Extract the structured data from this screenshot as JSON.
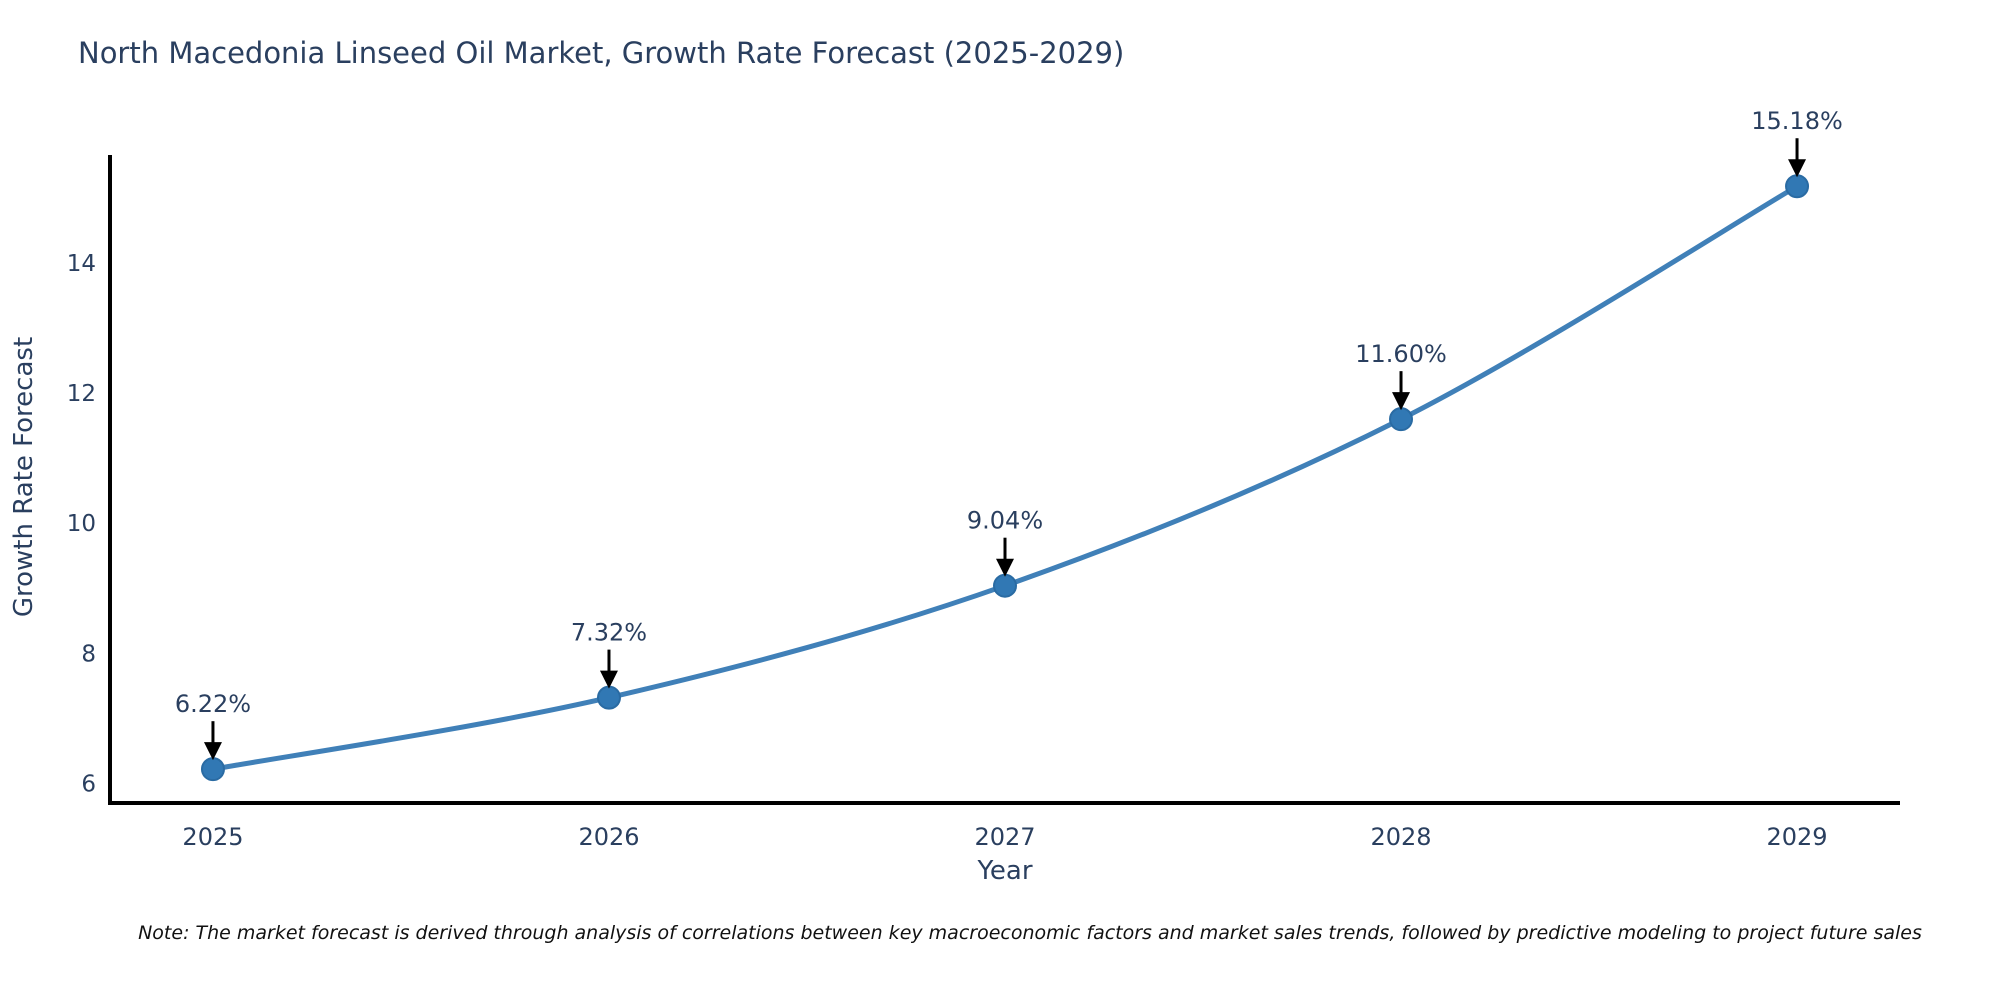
{
  "page": {
    "title": "North Macedonia Linseed Oil Market, Growth Rate Forecast (2025-2029)",
    "note": "Note: The market forecast is derived through analysis of correlations between key macroeconomic factors and market sales trends, followed by predictive modeling to project future sales"
  },
  "chart_data": {
    "type": "line",
    "title": "North Macedonia Linseed Oil Market, Growth Rate Forecast (2025-2029)",
    "xlabel": "Year",
    "ylabel": "Growth Rate Forecast",
    "x": [
      2025,
      2026,
      2027,
      2028,
      2029
    ],
    "values": [
      6.22,
      7.32,
      9.04,
      11.6,
      15.18
    ],
    "point_labels": [
      "6.22%",
      "7.32%",
      "9.04%",
      "11.60%",
      "15.18%"
    ],
    "xticks": [
      2025,
      2026,
      2027,
      2028,
      2029
    ],
    "yticks": [
      6,
      8,
      10,
      12,
      14
    ],
    "xlim": [
      2024.74,
      2029.26
    ],
    "ylim": [
      5.7,
      15.66
    ],
    "grid": false,
    "legend": false,
    "line_shape": "spline",
    "annotation_note": "data labels shown above each point with downward black arrows",
    "colors": {
      "line": "#4080b8",
      "marker": "#3178b4",
      "marker_edge": "#2a6ba3",
      "axis": "#000000",
      "tick_text": "#2a3f5f",
      "annotation_text": "#2a3f5f",
      "annotation_arrow": "#000000",
      "background": "#ffffff"
    }
  }
}
